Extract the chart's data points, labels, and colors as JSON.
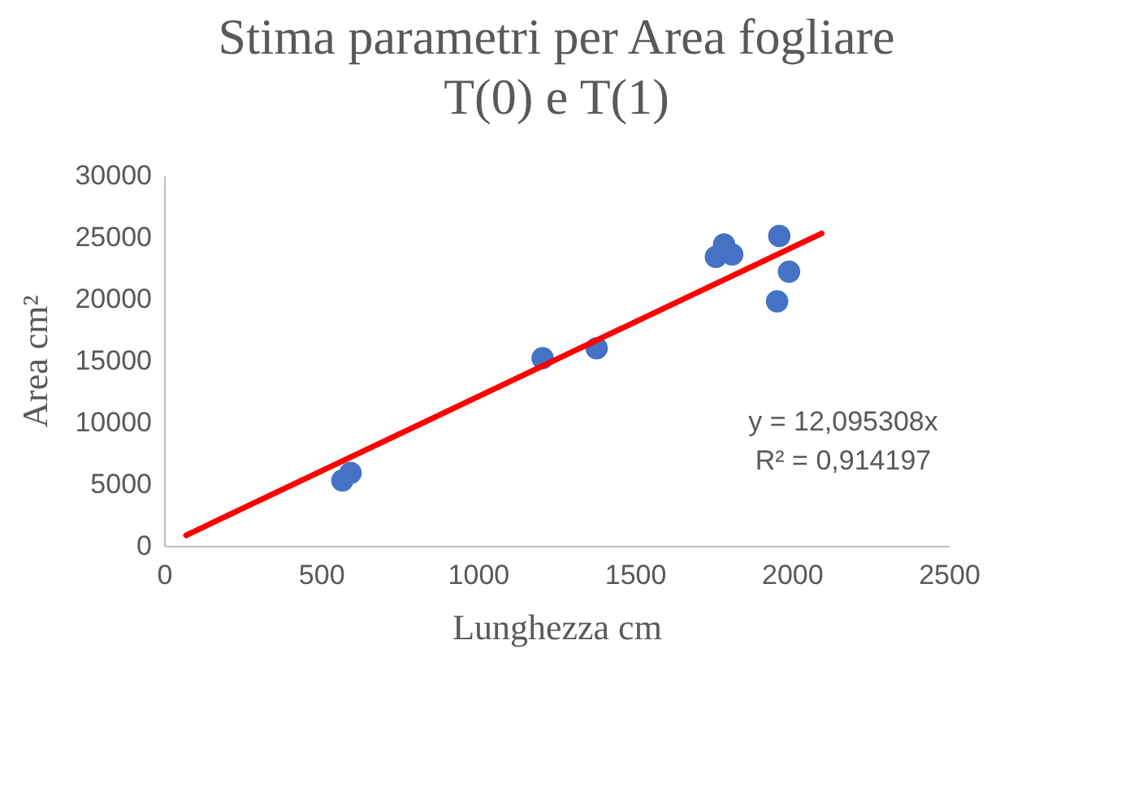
{
  "chart_data": {
    "type": "scatter",
    "title": [
      "Stima parametri per Area fogliare",
      "T(0) e T(1)"
    ],
    "xlabel": "Lunghezza cm",
    "ylabel": "Area  cm²",
    "xlim": [
      0,
      2500
    ],
    "xticks": [
      0,
      500,
      1000,
      1500,
      2000,
      2500
    ],
    "ylim": [
      0,
      30000
    ],
    "yticks": [
      0,
      5000,
      10000,
      15000,
      20000,
      25000,
      30000
    ],
    "grid": false,
    "annotations": [
      "y = 12,095308x",
      "R² = 0,914197"
    ],
    "series": [
      {
        "type": "scatter",
        "marker": "circle",
        "color": "#4472c4",
        "x": [
          568,
          594,
          1206,
          1378,
          1758,
          1784,
          1810,
          1960,
          1991,
          1953
        ],
        "values": [
          5300,
          5900,
          15200,
          16000,
          23400,
          24400,
          23600,
          25100,
          22200,
          19800
        ]
      },
      {
        "type": "line",
        "color": "#ff0000",
        "line_style": "solid",
        "x": [
          70,
          2095
        ],
        "values": [
          850,
          25300
        ]
      }
    ]
  }
}
